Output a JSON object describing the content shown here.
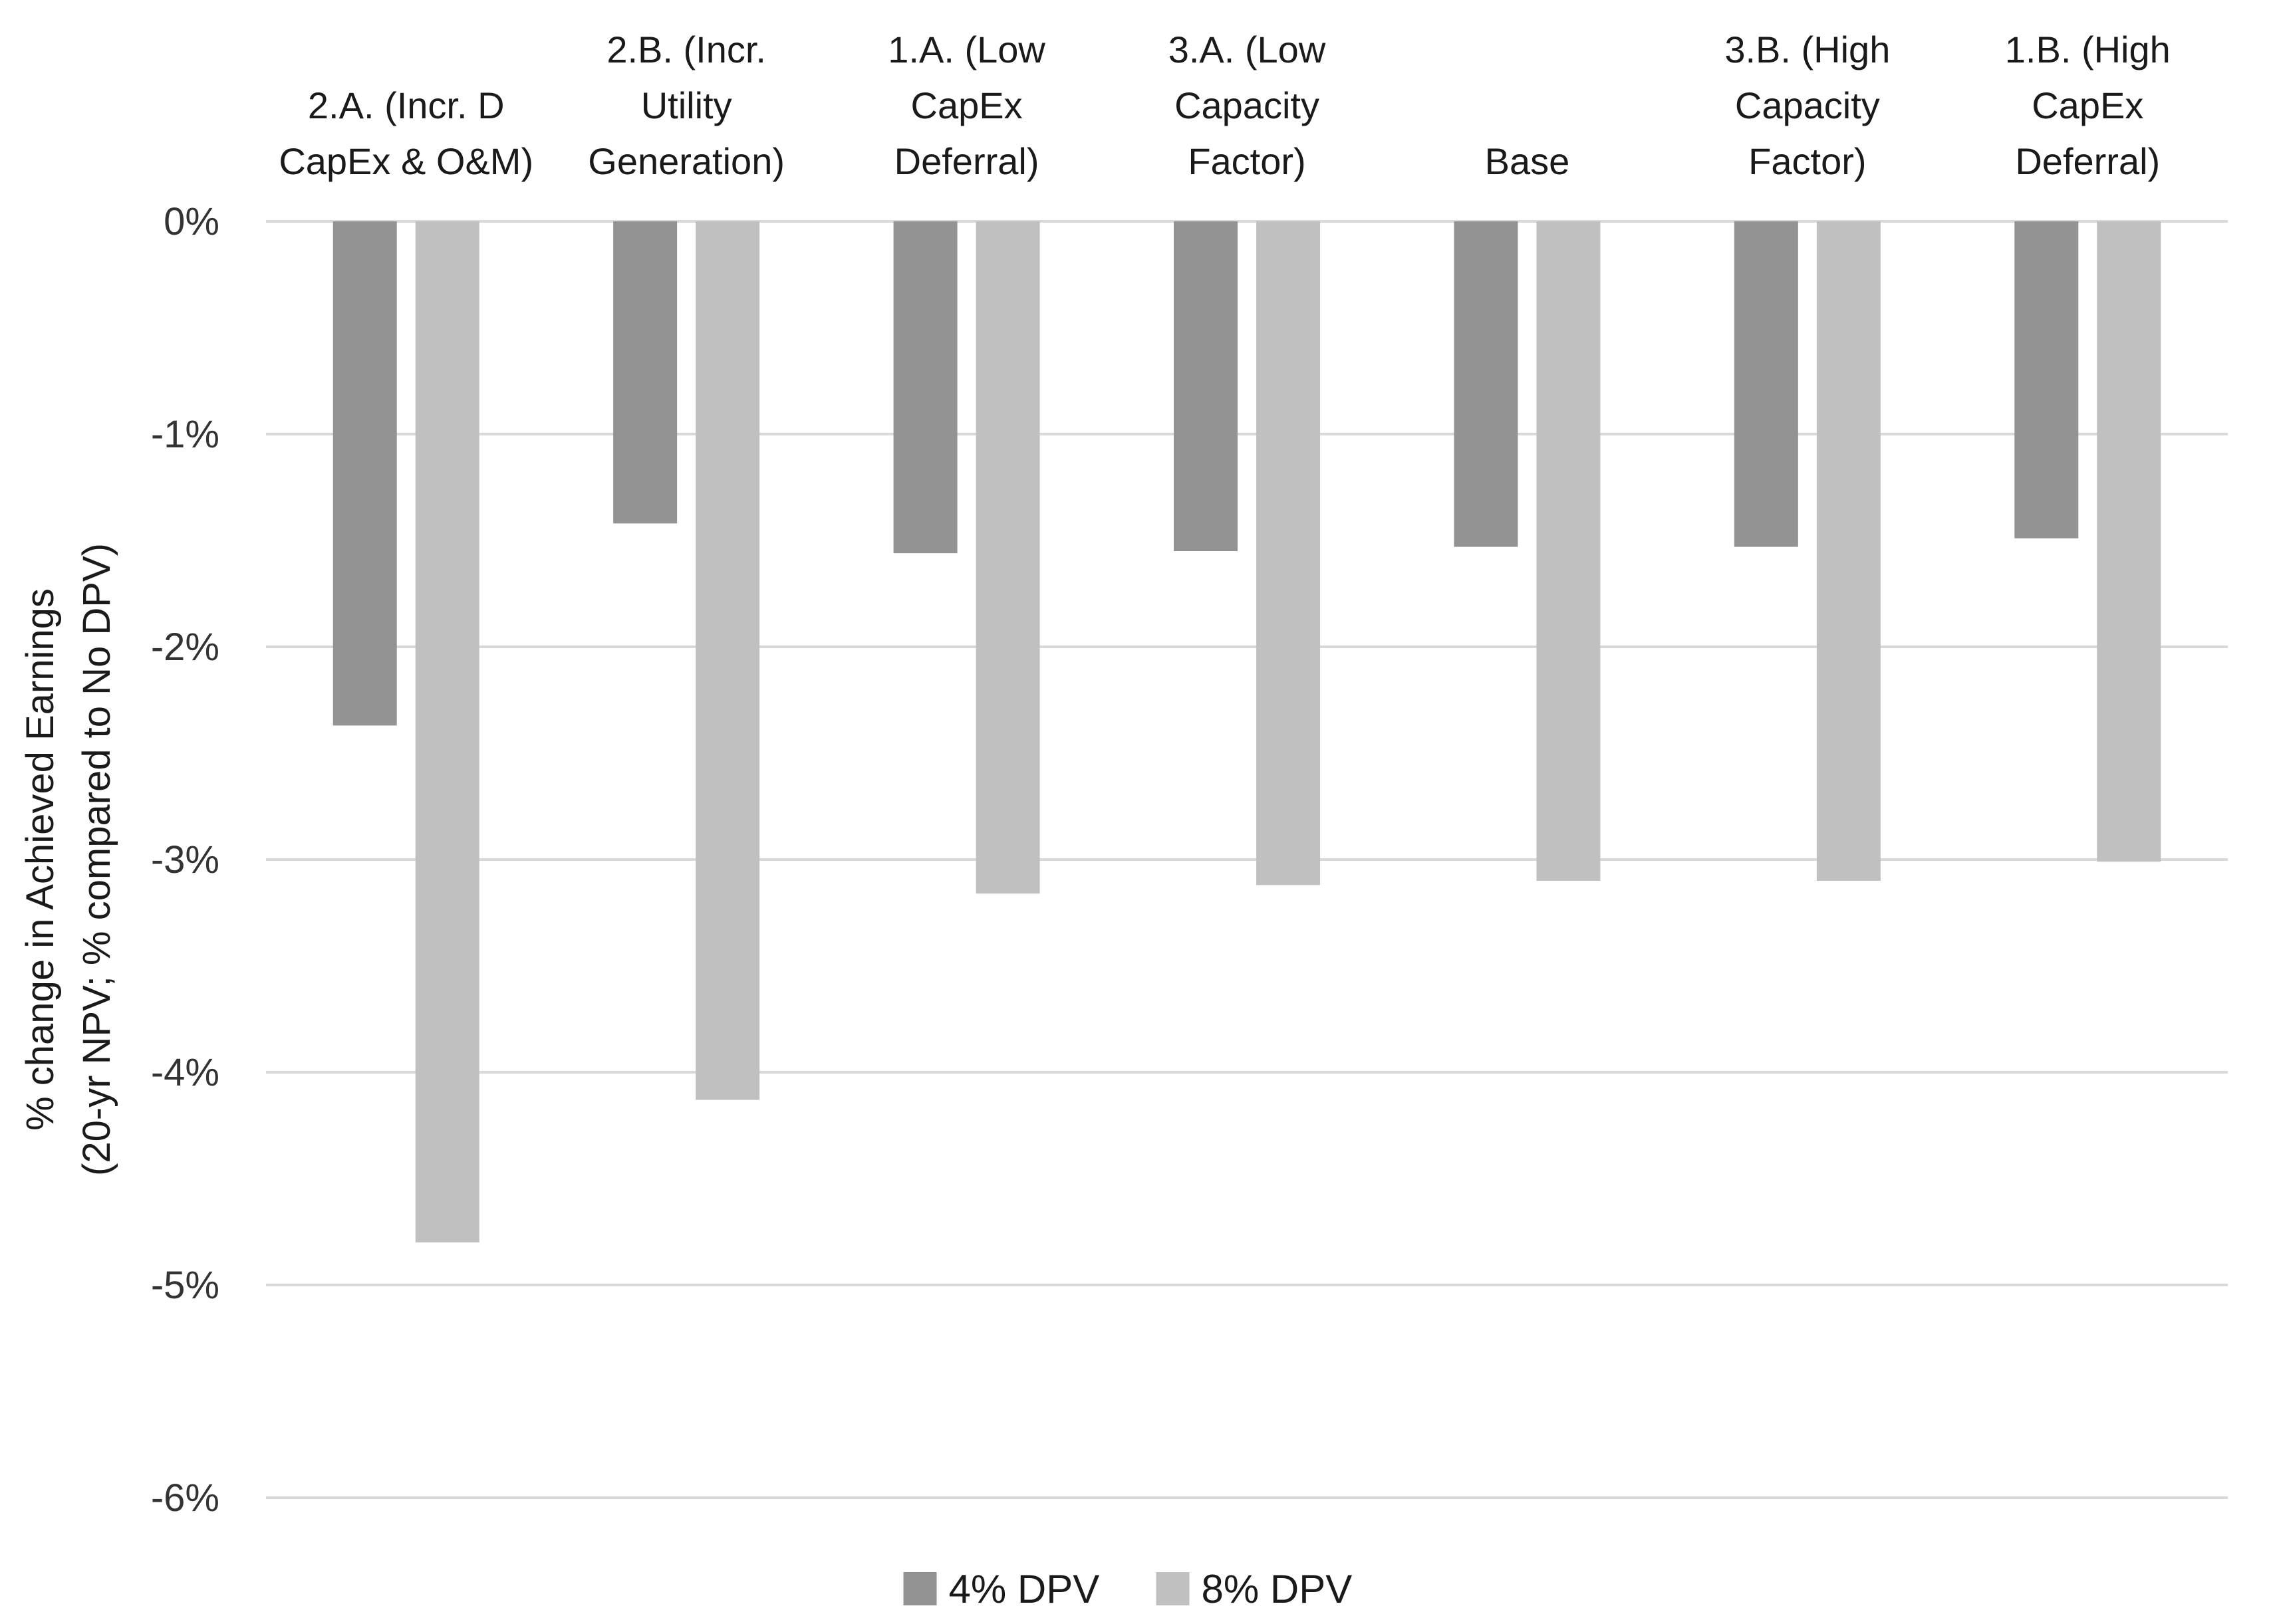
{
  "chart_data": {
    "type": "bar",
    "title": "",
    "xlabel": "",
    "ylabel_lines": [
      "% change in Achieved Earnings",
      "(20-yr NPV; % compared to No DPV)"
    ],
    "ylim": [
      -6,
      0
    ],
    "yticks": [
      0,
      -1,
      -2,
      -3,
      -4,
      -5,
      -6
    ],
    "ytick_labels": [
      "0%",
      "-1%",
      "-2%",
      "-3%",
      "-4%",
      "-5%",
      "-6%"
    ],
    "grid": true,
    "x_axis_position": "top",
    "categories": [
      [
        "2.A. (Incr. D",
        "CapEx & O&M)"
      ],
      [
        "2.B. (Incr.",
        "Utility",
        "Generation)"
      ],
      [
        "1.A. (Low",
        "CapEx",
        "Deferral)"
      ],
      [
        "3.A. (Low",
        "Capacity",
        "Factor)"
      ],
      [
        "Base"
      ],
      [
        "3.B. (High",
        "Capacity",
        "Factor)"
      ],
      [
        "1.B. (High",
        "CapEx",
        "Deferral)"
      ]
    ],
    "series": [
      {
        "name": "4% DPV",
        "color": "#939393",
        "values": [
          -2.37,
          -1.42,
          -1.56,
          -1.55,
          -1.53,
          -1.53,
          -1.49
        ]
      },
      {
        "name": "8% DPV",
        "color": "#c0c0c0",
        "values": [
          -4.8,
          -4.13,
          -3.16,
          -3.12,
          -3.1,
          -3.1,
          -3.01
        ]
      }
    ],
    "legend": {
      "position": "bottom-center"
    },
    "colors": {
      "grid": "#d9d9d9",
      "text": "#1a1a1a"
    }
  }
}
